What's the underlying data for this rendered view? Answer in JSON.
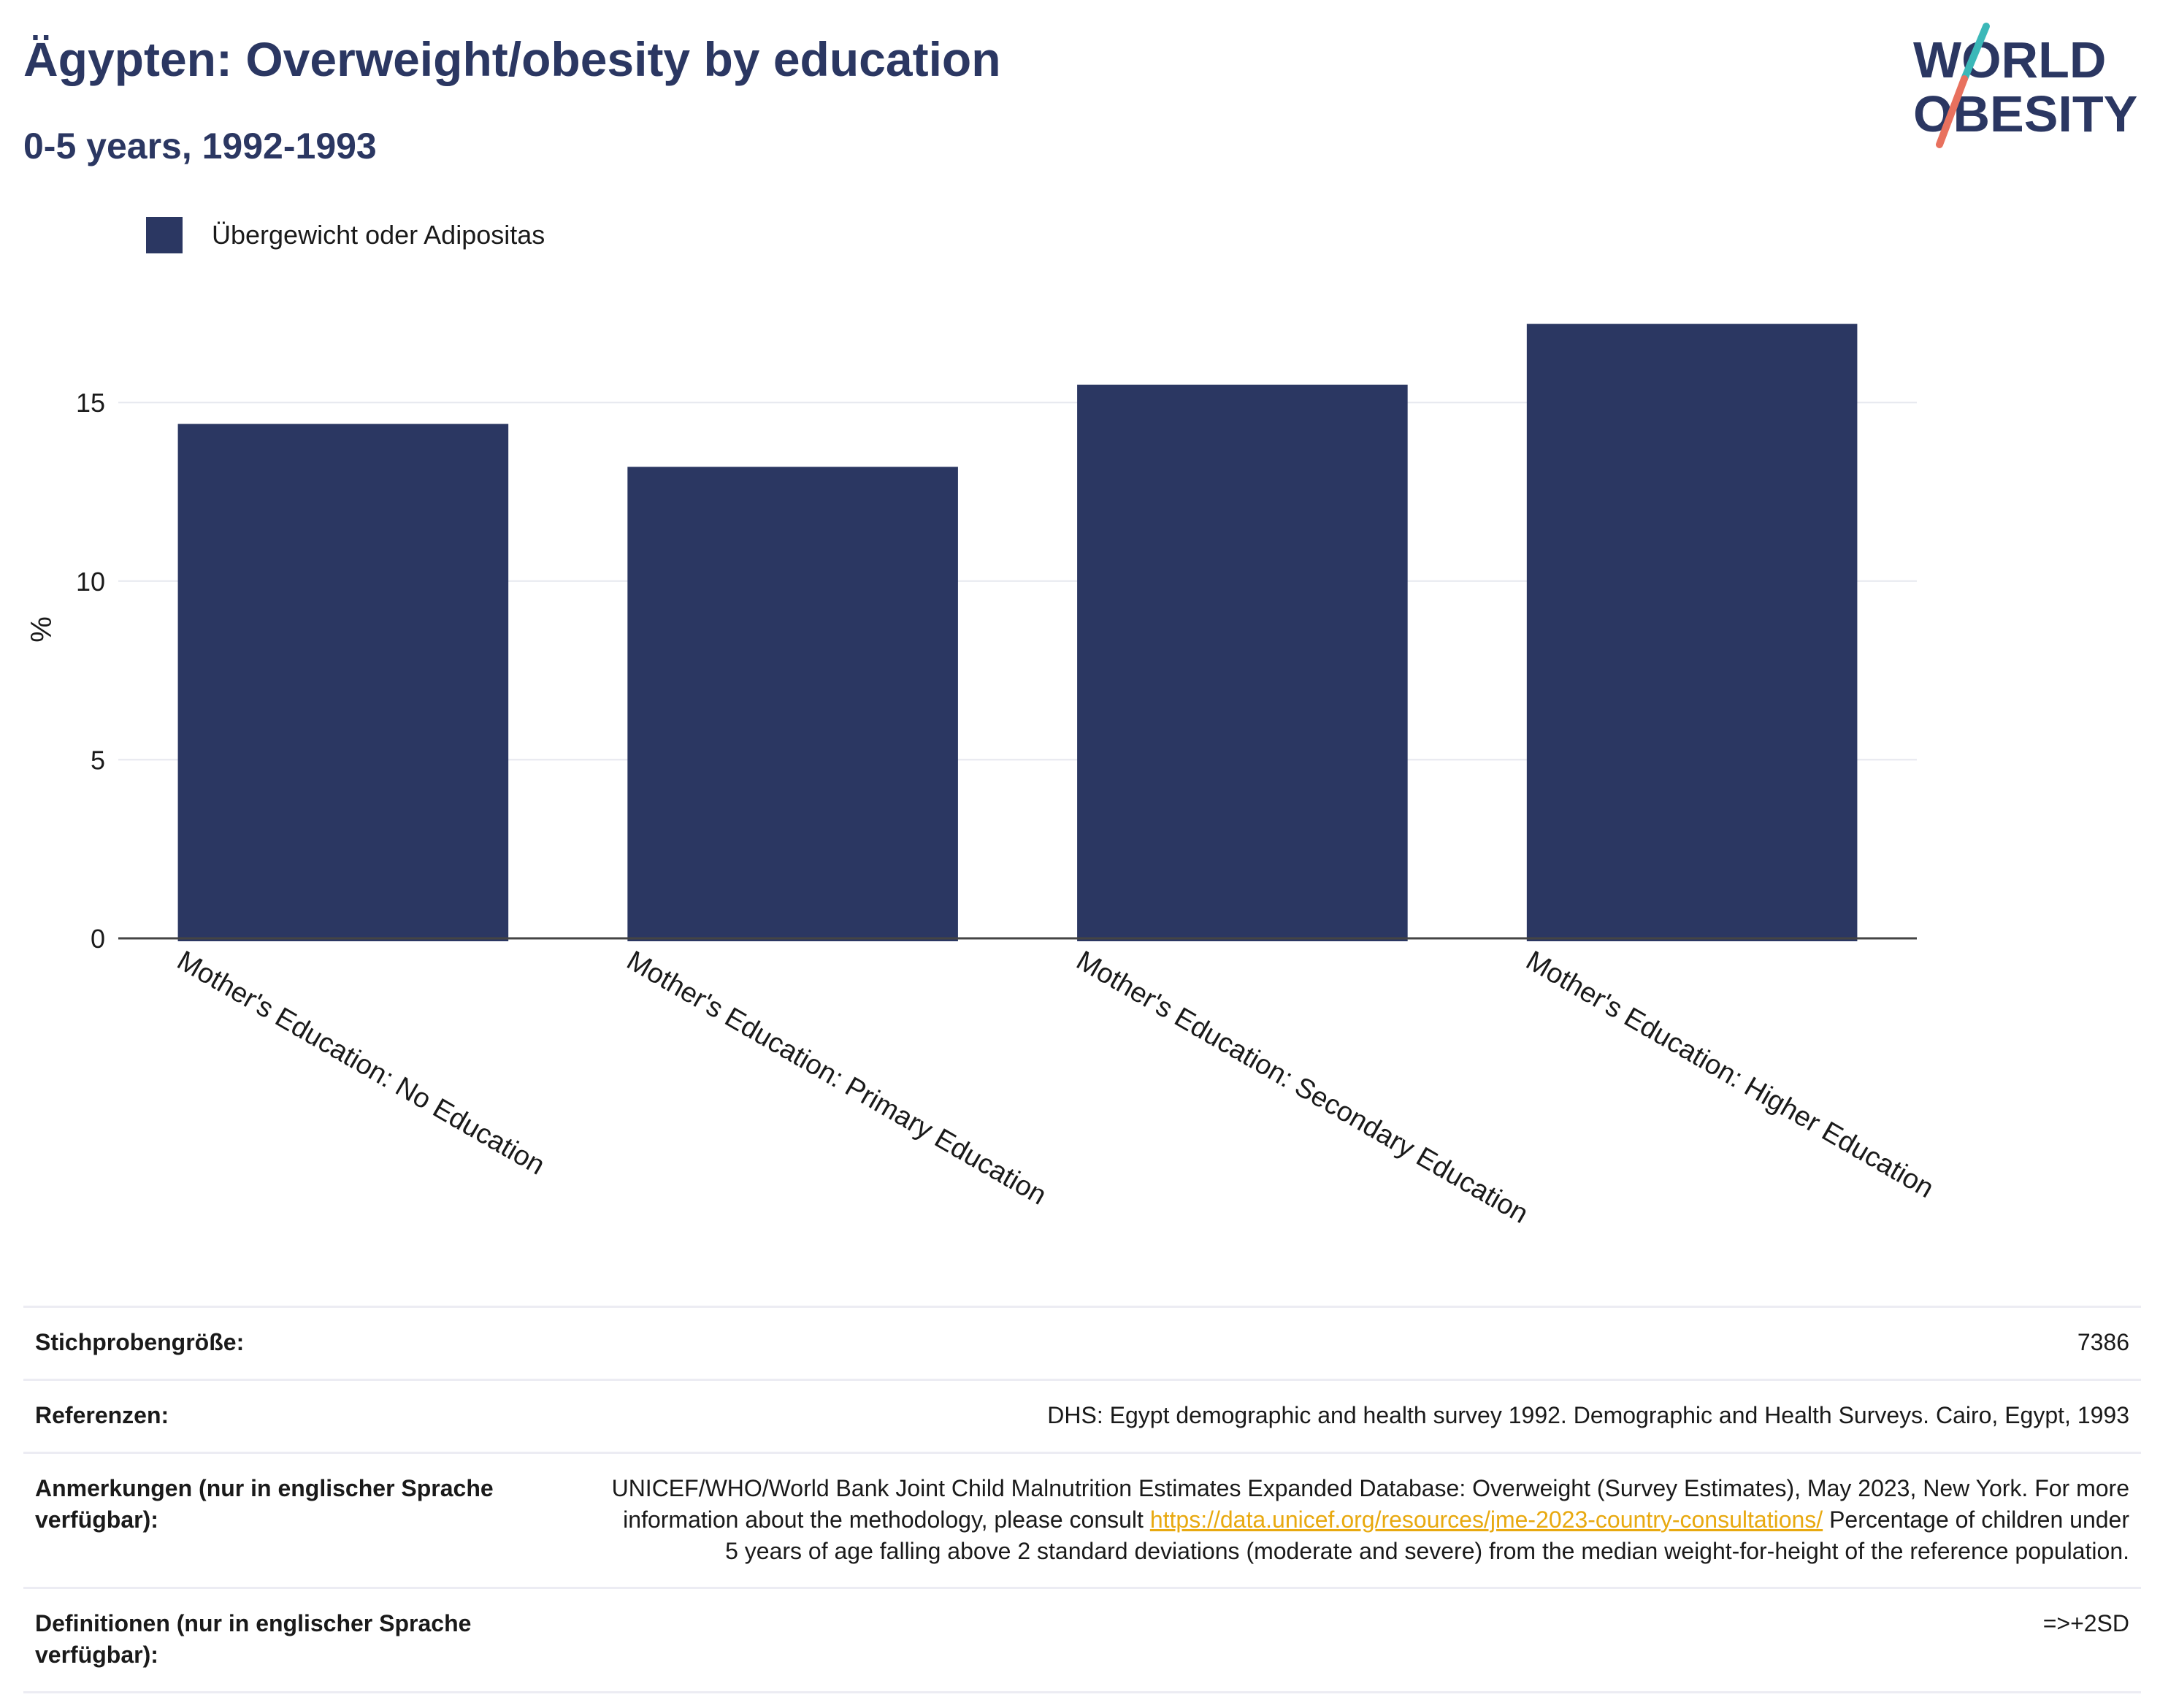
{
  "header": {
    "title": "Ägypten: Overweight/obesity by education",
    "subtitle": "0-5 years, 1992-1993"
  },
  "logo": {
    "line1": "WORLD",
    "line2": "OBESITY",
    "colors": {
      "text": "#2b3762",
      "slash_teal": "#3bb8b8",
      "slash_coral": "#e8715e"
    }
  },
  "colors": {
    "bar": "#2b3762",
    "grid": "#e6e8ef",
    "axis": "#444444",
    "link": "#e8a910"
  },
  "chart_data": {
    "type": "bar",
    "categories": [
      "Mother's Education: No Education",
      "Mother's Education: Primary Education",
      "Mother's Education: Secondary Education",
      "Mother's Education: Higher Education"
    ],
    "series": [
      {
        "name": "Übergewicht oder Adipositas",
        "values": [
          14.4,
          13.2,
          15.5,
          17.2
        ]
      }
    ],
    "ylabel": "%",
    "ylim": [
      0,
      18.5
    ],
    "yticks": [
      0,
      5,
      10,
      15
    ],
    "grid": true,
    "legend": "top-left"
  },
  "info": [
    {
      "label": "Stichprobengröße:",
      "value": "7386"
    },
    {
      "label": "Referenzen:",
      "value": "DHS: Egypt demographic and health survey 1992. Demographic and Health Surveys. Cairo, Egypt, 1993"
    },
    {
      "label": "Anmerkungen (nur in englischer Sprache verfügbar):",
      "value_before": "UNICEF/WHO/World Bank Joint Child Malnutrition Estimates Expanded Database: Overweight (Survey Estimates), May 2023, New York. For more information about the methodology, please consult ",
      "link": "https://data.unicef.org/resources/jme-2023-country-consultations/",
      "value_after": " Percentage of children under 5 years of age falling above 2 standard deviations (moderate and severe) from the median weight-for-height of the reference population."
    },
    {
      "label": "Definitionen (nur in englischer Sprache verfügbar):",
      "value": "=>+2SD"
    }
  ]
}
